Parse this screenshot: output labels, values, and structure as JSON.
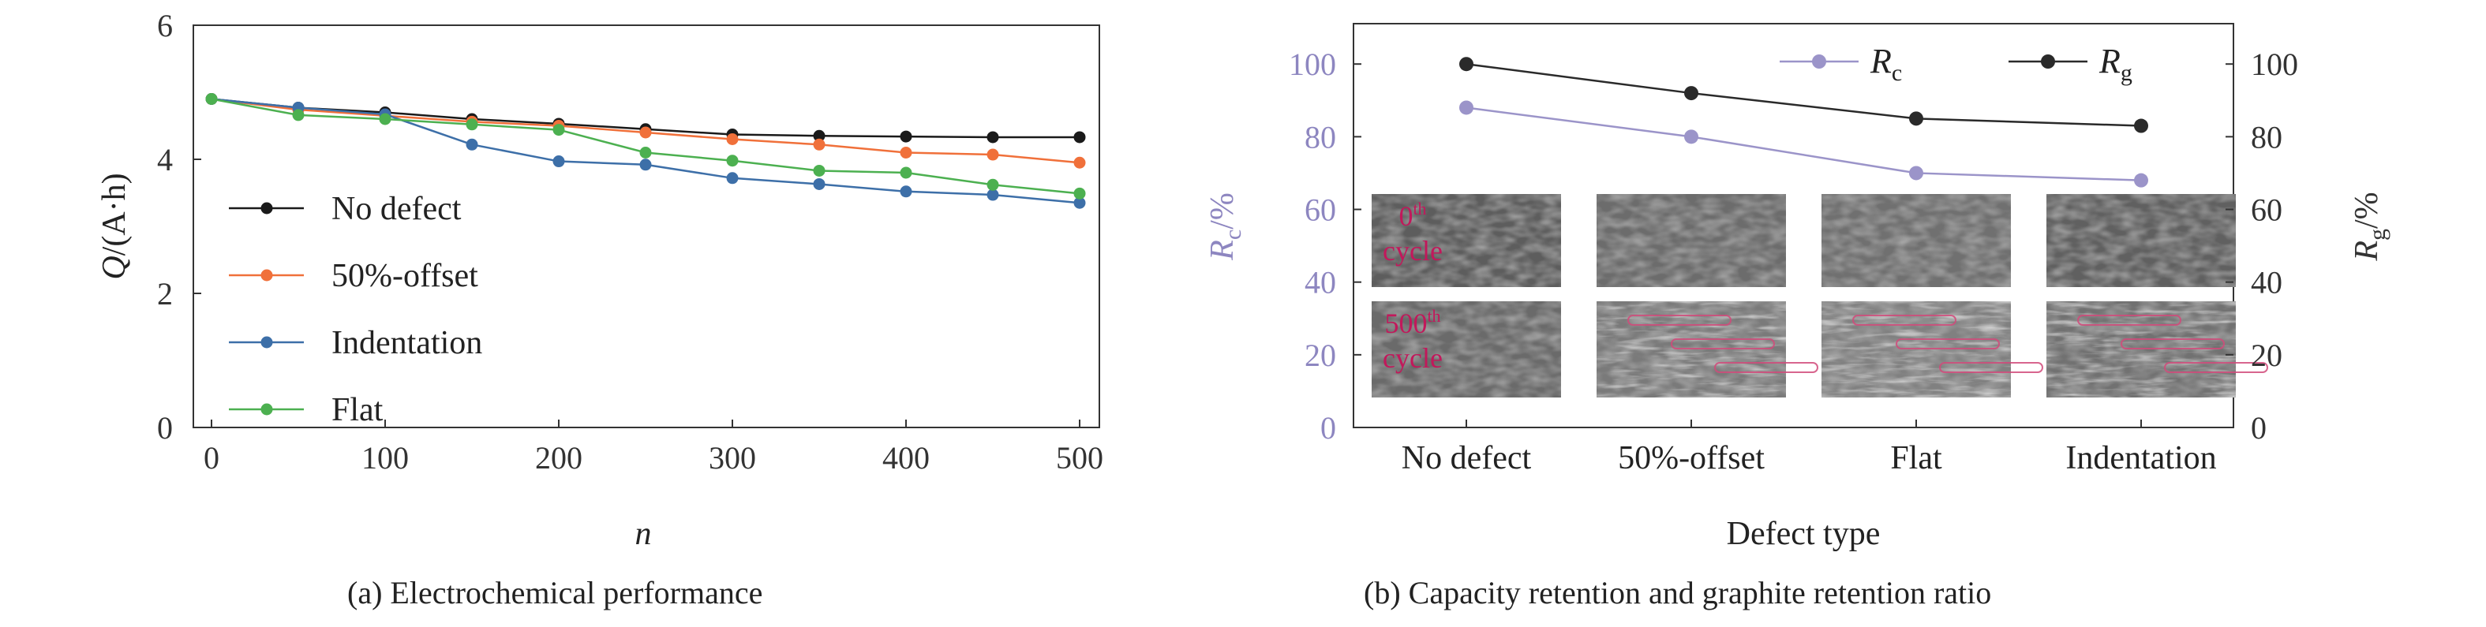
{
  "chart_data": [
    {
      "type": "line",
      "caption": "(a) Electrochemical performance",
      "xlabel": "n",
      "ylabel": "Q/(A·h)",
      "xlim": [
        0,
        500
      ],
      "ylim": [
        0,
        6
      ],
      "xticks": [
        "0",
        "100",
        "200",
        "300",
        "400",
        "500"
      ],
      "yticks": [
        "0",
        "2",
        "4",
        "6"
      ],
      "grid": false,
      "legend_position": "left",
      "x": [
        0,
        50,
        100,
        150,
        200,
        250,
        300,
        350,
        400,
        450,
        500
      ],
      "series": [
        {
          "name": "No defect",
          "color": "#1a1a1a",
          "values": [
            4.9,
            4.77,
            4.7,
            4.6,
            4.53,
            4.45,
            4.37,
            4.35,
            4.34,
            4.33,
            4.33
          ]
        },
        {
          "name": "50%-offset",
          "color": "#f0703a",
          "values": [
            4.9,
            4.74,
            4.65,
            4.56,
            4.5,
            4.4,
            4.3,
            4.22,
            4.1,
            4.07,
            3.95
          ]
        },
        {
          "name": "Indentation",
          "color": "#3d6fa8",
          "values": [
            4.9,
            4.77,
            4.67,
            4.22,
            3.97,
            3.92,
            3.72,
            3.63,
            3.52,
            3.47,
            3.35
          ]
        },
        {
          "name": "Flat",
          "color": "#4cb050",
          "values": [
            4.9,
            4.66,
            4.6,
            4.52,
            4.44,
            4.1,
            3.98,
            3.83,
            3.8,
            3.62,
            3.49
          ]
        }
      ]
    },
    {
      "type": "line",
      "caption": "(b) Capacity retention and graphite retention ratio",
      "xlabel": "Defect type",
      "ylabel_left_main": "R",
      "ylabel_left_sub": "c",
      "ylabel_left_unit": "/%",
      "ylabel_right_main": "R",
      "ylabel_right_sub": "g",
      "ylabel_right_unit": "/%",
      "ylim": [
        0,
        100
      ],
      "yticks": [
        "0",
        "20",
        "40",
        "60",
        "80",
        "100"
      ],
      "categories": [
        "No defect",
        "50%-offset",
        "Flat",
        "Indentation"
      ],
      "grid": false,
      "legend_position": "top-right",
      "series": [
        {
          "name_main": "R",
          "name_sub": "c",
          "color": "#9b94c9",
          "axis": "left",
          "values": [
            88,
            80,
            70,
            68
          ]
        },
        {
          "name_main": "R",
          "name_sub": "g",
          "color": "#2a2a2a",
          "axis": "right",
          "values": [
            100,
            92,
            85,
            83
          ]
        }
      ],
      "inset": {
        "row_labels": [
          {
            "num": "0",
            "sup": "th",
            "word": "cycle"
          },
          {
            "num": "500",
            "sup": "th",
            "word": "cycle"
          }
        ],
        "label_color": "#c2185b"
      }
    }
  ]
}
